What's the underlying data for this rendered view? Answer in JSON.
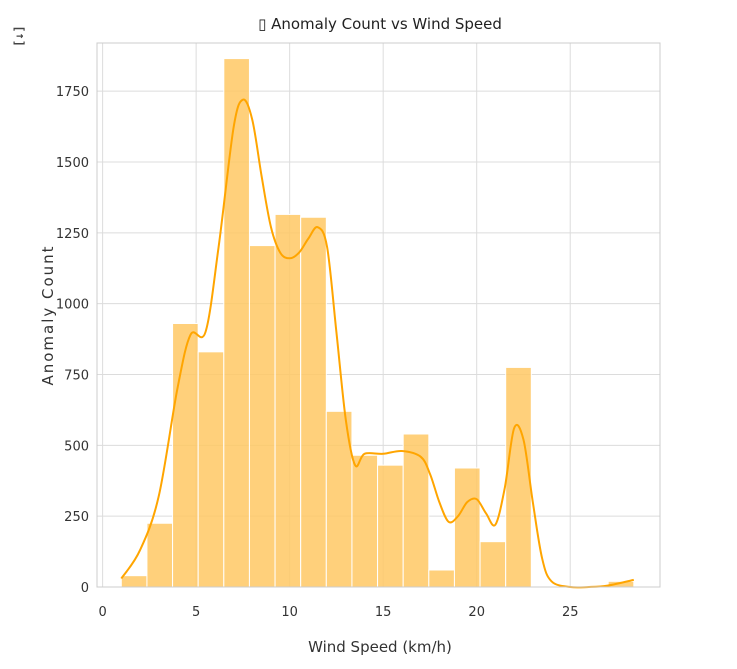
{
  "corner_icon": {
    "icon": "expand-output-icon",
    "glyph": "[↓]"
  },
  "chart_data": {
    "type": "bar",
    "title": "▯ Anomaly Count vs Wind Speed",
    "xlabel": "Wind Speed (km/h)",
    "ylabel": "Anomaly Count",
    "xlim": [
      -0.3,
      29.8
    ],
    "ylim": [
      0,
      1920
    ],
    "x_ticks": [
      0,
      5,
      10,
      15,
      20,
      25
    ],
    "y_ticks": [
      0,
      250,
      500,
      750,
      1000,
      1250,
      1500,
      1750
    ],
    "x_tick_labels": [
      "0",
      "5",
      "10",
      "15",
      "20",
      "25"
    ],
    "y_tick_labels": [
      "0",
      "250",
      "500",
      "750",
      "1000",
      "1250",
      "1500",
      "1750"
    ],
    "grid": true,
    "bar_color": "#ffc864",
    "kde_color": "#ffa500",
    "bins": [
      {
        "x0": 1.0,
        "x1": 2.37,
        "value": 40
      },
      {
        "x0": 2.37,
        "x1": 3.74,
        "value": 225
      },
      {
        "x0": 3.74,
        "x1": 5.11,
        "value": 930
      },
      {
        "x0": 5.11,
        "x1": 6.48,
        "value": 830
      },
      {
        "x0": 6.48,
        "x1": 7.85,
        "value": 1865
      },
      {
        "x0": 7.85,
        "x1": 9.22,
        "value": 1205
      },
      {
        "x0": 9.22,
        "x1": 10.59,
        "value": 1315
      },
      {
        "x0": 10.59,
        "x1": 11.96,
        "value": 1305
      },
      {
        "x0": 11.96,
        "x1": 13.33,
        "value": 620
      },
      {
        "x0": 13.33,
        "x1": 14.7,
        "value": 465
      },
      {
        "x0": 14.7,
        "x1": 16.07,
        "value": 430
      },
      {
        "x0": 16.07,
        "x1": 17.44,
        "value": 540
      },
      {
        "x0": 17.44,
        "x1": 18.81,
        "value": 60
      },
      {
        "x0": 18.81,
        "x1": 20.18,
        "value": 420
      },
      {
        "x0": 20.18,
        "x1": 21.55,
        "value": 160
      },
      {
        "x0": 21.55,
        "x1": 22.92,
        "value": 775
      },
      {
        "x0": 22.92,
        "x1": 24.29,
        "value": 0
      },
      {
        "x0": 24.29,
        "x1": 25.66,
        "value": 0
      },
      {
        "x0": 25.66,
        "x1": 27.03,
        "value": 0
      },
      {
        "x0": 27.03,
        "x1": 28.4,
        "value": 20
      }
    ],
    "kde": {
      "x": [
        1.0,
        2.0,
        3.0,
        4.0,
        4.7,
        5.5,
        6.2,
        7.0,
        7.5,
        8.0,
        8.5,
        9.0,
        9.5,
        10.0,
        10.5,
        11.0,
        11.5,
        12.0,
        12.5,
        13.0,
        13.5,
        14.0,
        15.0,
        16.0,
        17.0,
        17.5,
        18.0,
        18.5,
        19.0,
        19.5,
        20.0,
        20.5,
        21.0,
        21.5,
        22.0,
        22.5,
        23.0,
        23.5,
        24.0,
        25.0,
        26.0,
        27.0,
        28.4
      ],
      "y": [
        30,
        130,
        320,
        700,
        890,
        900,
        1200,
        1620,
        1720,
        1650,
        1450,
        1270,
        1180,
        1160,
        1180,
        1230,
        1270,
        1200,
        900,
        590,
        430,
        470,
        470,
        480,
        460,
        400,
        300,
        230,
        250,
        300,
        310,
        260,
        220,
        350,
        560,
        520,
        300,
        100,
        20,
        0,
        0,
        5,
        25
      ]
    }
  }
}
